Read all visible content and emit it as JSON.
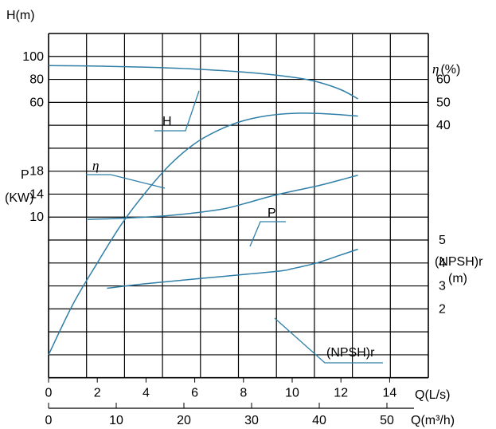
{
  "chart_data": {
    "type": "line",
    "ylabel_h": "H(m)",
    "ylabel_p_top": "P",
    "ylabel_p_unit": "(KW)",
    "ylabel_eta": "η(%)",
    "ylabel_npsh": "(NPSH)r",
    "ylabel_npsh_unit": "(m)",
    "xlabel_ls": "Q(L/s)",
    "xlabel_m3h": "Q(m³/h)",
    "h_ticks": [
      {
        "v": "100",
        "row": 1
      },
      {
        "v": "80",
        "row": 2
      },
      {
        "v": "60",
        "row": 3
      }
    ],
    "p_ticks": [
      {
        "v": "18",
        "row": 6
      },
      {
        "v": "14",
        "row": 7
      },
      {
        "v": "10",
        "row": 8
      }
    ],
    "eta_ticks": [
      {
        "v": "60",
        "row": 2
      },
      {
        "v": "50",
        "row": 3
      },
      {
        "v": "40",
        "row": 4
      }
    ],
    "npsh_ticks": [
      {
        "v": "5",
        "row": 9
      },
      {
        "v": "4",
        "row": 10
      },
      {
        "v": "3",
        "row": 11
      },
      {
        "v": "2",
        "row": 12
      }
    ],
    "x_ticks_ls": [
      "0",
      "2",
      "4",
      "6",
      "8",
      "10",
      "12",
      "14"
    ],
    "x_ticks_m3h": [
      "0",
      "10",
      "20",
      "30",
      "40",
      "50"
    ],
    "curve_labels": {
      "H": "H",
      "eta": "η",
      "P": "P",
      "NPSH": "(NPSH)r"
    },
    "series": [
      {
        "name": "H",
        "unit": "m",
        "x_ls": [
          0,
          2,
          4,
          6,
          8,
          10,
          11,
          12,
          12.7
        ],
        "y": [
          86,
          85.8,
          85.3,
          84.5,
          83.2,
          81.0,
          79.0,
          75.5,
          71.5
        ]
      },
      {
        "name": "η",
        "unit": "%",
        "x_ls": [
          0,
          1,
          2,
          3,
          4,
          5,
          6,
          7,
          8,
          9,
          10,
          11,
          12,
          12.7
        ],
        "y": [
          0,
          11,
          20,
          28.5,
          35.5,
          41.5,
          46,
          49,
          51,
          52.1,
          52.6,
          52.6,
          52.3,
          52.0
        ]
      },
      {
        "name": "P",
        "unit": "KW",
        "x_ls": [
          1.6,
          3,
          5,
          7,
          8,
          9,
          10,
          11,
          12,
          12.7
        ],
        "y": [
          9.6,
          9.8,
          10.3,
          11.3,
          12.3,
          13.5,
          14.5,
          15.4,
          16.5,
          17.3
        ]
      },
      {
        "name": "(NPSH)r",
        "unit": "m",
        "x_ls": [
          2.4,
          4,
          6,
          8,
          9.5,
          10,
          11,
          12,
          12.7
        ],
        "y": [
          2.9,
          3.1,
          3.3,
          3.5,
          3.65,
          3.75,
          4.0,
          4.35,
          4.6
        ]
      }
    ]
  }
}
